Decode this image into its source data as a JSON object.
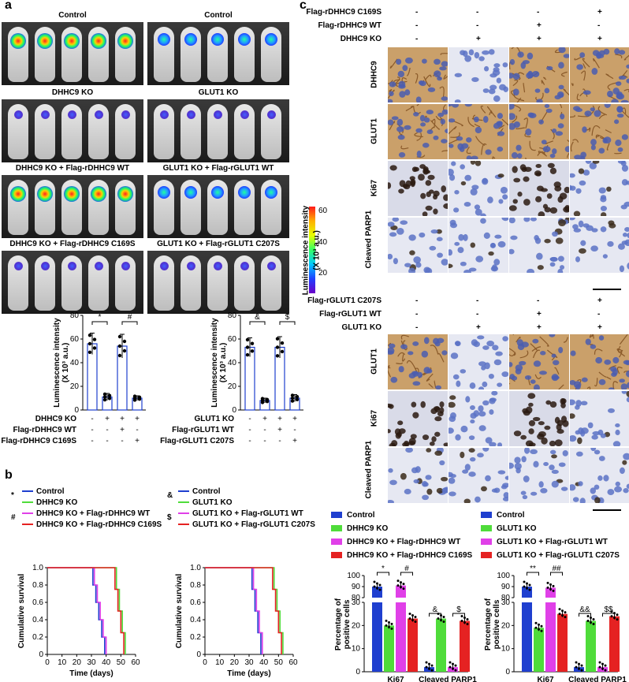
{
  "panels": {
    "a": "a",
    "b": "b",
    "c": "c"
  },
  "imaging": {
    "groups": [
      {
        "label": "Control",
        "intensity": "high"
      },
      {
        "label": "Control",
        "intensity": "mid"
      },
      {
        "label": "DHHC9 KO",
        "intensity": "low"
      },
      {
        "label": "GLUT1 KO",
        "intensity": "low"
      },
      {
        "label": "DHHC9 KO + Flag-rDHHC9 WT",
        "intensity": "high"
      },
      {
        "label": "GLUT1 KO + Flag-rGLUT1 WT",
        "intensity": "mid"
      },
      {
        "label": "DHHC9 KO + Flag-rDHHC9 C169S",
        "intensity": "low"
      },
      {
        "label": "GLUT1 KO + Flag-rGLUT1 C207S",
        "intensity": "low"
      }
    ],
    "colorbar": {
      "label": "Luminescence intensity",
      "unit": "(X 10³ a.u.)",
      "ticks": [
        "60",
        "40",
        "20"
      ]
    }
  },
  "bar_a_ylabel": "Luminescence intensity",
  "bar_a_yunit": "(X 10³ a.u.)",
  "chart_data": [
    {
      "type": "bar",
      "ylabel": "Luminescence intensity (X 10³ a.u.)",
      "ylim": [
        0,
        80
      ],
      "yticks": [
        "0",
        "20",
        "40",
        "60",
        "80"
      ],
      "values": [
        56,
        11,
        54,
        10
      ],
      "errors": [
        9,
        3,
        10,
        2
      ],
      "rows": [
        {
          "label": "DHHC9 KO",
          "marks": [
            "-",
            "+",
            "+",
            "+"
          ]
        },
        {
          "label": "Flag-rDHHC9 WT",
          "marks": [
            "-",
            "-",
            "+",
            "-"
          ]
        },
        {
          "label": "Flag-rDHHC9 C169S",
          "marks": [
            "-",
            "-",
            "-",
            "+"
          ]
        }
      ],
      "sig": [
        "*",
        "#"
      ]
    },
    {
      "type": "bar",
      "ylabel": "Luminescence intensity (X 10³ a.u.)",
      "ylim": [
        0,
        80
      ],
      "yticks": [
        "0",
        "20",
        "40",
        "60",
        "80"
      ],
      "values": [
        53,
        8,
        53,
        10
      ],
      "errors": [
        8,
        2,
        9,
        3
      ],
      "rows": [
        {
          "label": "GLUT1 KO",
          "marks": [
            "-",
            "+",
            "+",
            "+"
          ]
        },
        {
          "label": "Flag-rGLUT1 WT",
          "marks": [
            "-",
            "-",
            "+",
            "-"
          ]
        },
        {
          "label": "Flag-rGLUT1 C207S",
          "marks": [
            "-",
            "-",
            "-",
            "+"
          ]
        }
      ],
      "sig": [
        "&",
        "$"
      ]
    },
    {
      "type": "line",
      "xlabel": "Time (days)",
      "ylabel": "Cumulative survival",
      "xlim": [
        0,
        60
      ],
      "ylim": [
        0,
        1.0
      ],
      "xticks": [
        "0",
        "10",
        "20",
        "30",
        "40",
        "50",
        "60"
      ],
      "yticks": [
        "0",
        "0.2",
        "0.4",
        "0.6",
        "0.8",
        "1.0"
      ],
      "series": [
        {
          "name": "Control",
          "color": "#1f3fcf",
          "x": [
            0,
            29,
            31,
            33,
            35,
            37,
            39
          ],
          "y": [
            1.0,
            1.0,
            0.8,
            0.6,
            0.4,
            0.2,
            0.0
          ]
        },
        {
          "name": "DHHC9 KO",
          "color": "#4fdc3a",
          "x": [
            0,
            45,
            47,
            49,
            51,
            53
          ],
          "y": [
            1.0,
            1.0,
            0.75,
            0.5,
            0.25,
            0.0
          ]
        },
        {
          "name": "DHHC9 KO + Flag-rDHHC9 WT",
          "color": "#e040e8",
          "x": [
            0,
            30,
            32,
            34,
            36,
            38,
            40
          ],
          "y": [
            1.0,
            1.0,
            0.8,
            0.6,
            0.4,
            0.2,
            0.0
          ]
        },
        {
          "name": "DHHC9 KO + Flag-rDHHC9 C169S",
          "color": "#e52222",
          "x": [
            0,
            44,
            46,
            48,
            50,
            52
          ],
          "y": [
            1.0,
            1.0,
            0.75,
            0.5,
            0.25,
            0.0
          ]
        }
      ],
      "sig": [
        "*",
        "#"
      ]
    },
    {
      "type": "line",
      "xlabel": "Time (days)",
      "ylabel": "Cumulative survival",
      "xlim": [
        0,
        60
      ],
      "ylim": [
        0,
        1.0
      ],
      "xticks": [
        "0",
        "10",
        "20",
        "30",
        "40",
        "50",
        "60"
      ],
      "yticks": [
        "0",
        "0.2",
        "0.4",
        "0.6",
        "0.8",
        "1.0"
      ],
      "series": [
        {
          "name": "Control",
          "color": "#1f3fcf",
          "x": [
            0,
            30,
            32,
            34,
            36,
            38
          ],
          "y": [
            1.0,
            1.0,
            0.75,
            0.5,
            0.25,
            0.0
          ]
        },
        {
          "name": "GLUT1 KO",
          "color": "#4fdc3a",
          "x": [
            0,
            45,
            47,
            49,
            51,
            53
          ],
          "y": [
            1.0,
            1.0,
            0.75,
            0.5,
            0.25,
            0.0
          ]
        },
        {
          "name": "GLUT1 KO + Flag-rGLUT1 WT",
          "color": "#e040e8",
          "x": [
            0,
            31,
            33,
            35,
            37,
            39
          ],
          "y": [
            1.0,
            1.0,
            0.75,
            0.5,
            0.25,
            0.0
          ]
        },
        {
          "name": "GLUT1 KO + Flag-rGLUT1 C207S",
          "color": "#e52222",
          "x": [
            0,
            44,
            46,
            48,
            50,
            52
          ],
          "y": [
            1.0,
            1.0,
            0.75,
            0.5,
            0.25,
            0.0
          ]
        }
      ],
      "sig": [
        "&",
        "$"
      ]
    },
    {
      "type": "bar",
      "ylabel": "Percentage of positive cells",
      "categories": [
        "Ki67",
        "Cleaved PARP1"
      ],
      "series": [
        {
          "name": "Control",
          "color": "#1f3fcf",
          "values": [
            90,
            2
          ]
        },
        {
          "name": "DHHC9 KO",
          "color": "#4fdc3a",
          "values": [
            20,
            23
          ]
        },
        {
          "name": "DHHC9 KO + Flag-rDHHC9 WT",
          "color": "#e040e8",
          "values": [
            91,
            2
          ]
        },
        {
          "name": "DHHC9 KO + Flag-rDHHC9 C169S",
          "color": "#e52222",
          "values": [
            23,
            22
          ]
        }
      ],
      "yticks": [
        "0",
        "10",
        "20",
        "30",
        "80",
        "90",
        "100"
      ],
      "sig": [
        "*",
        "#",
        "&",
        "$"
      ]
    },
    {
      "type": "bar",
      "ylabel": "Percentage of positive cells",
      "categories": [
        "Ki67",
        "Cleaved PARP1"
      ],
      "series": [
        {
          "name": "Control",
          "color": "#1f3fcf",
          "values": [
            90,
            2
          ]
        },
        {
          "name": "GLUT1 KO",
          "color": "#4fdc3a",
          "values": [
            19,
            22
          ]
        },
        {
          "name": "GLUT1 KO + Flag-rGLUT1 WT",
          "color": "#e040e8",
          "values": [
            89,
            2
          ]
        },
        {
          "name": "GLUT1 KO + Flag-rGLUT1 C207S",
          "color": "#e52222",
          "values": [
            25,
            24
          ]
        }
      ],
      "yticks": [
        "0",
        "10",
        "20",
        "30",
        "80",
        "90",
        "100"
      ],
      "sig": [
        "**",
        "##",
        "&&",
        "$$"
      ]
    }
  ],
  "ihc_top": {
    "rows_header": [
      {
        "label": "Flag-rDHHC9 C169S",
        "marks": [
          "-",
          "-",
          "-",
          "+"
        ]
      },
      {
        "label": "Flag-rDHHC9 WT",
        "marks": [
          "-",
          "-",
          "+",
          "-"
        ]
      },
      {
        "label": "DHHC9 KO",
        "marks": [
          "-",
          "+",
          "+",
          "+"
        ]
      }
    ],
    "stains": [
      "DHHC9",
      "GLUT1",
      "Ki67",
      "Cleaved PARP1"
    ]
  },
  "ihc_bottom": {
    "rows_header": [
      {
        "label": "Flag-rGLUT1 C207S",
        "marks": [
          "-",
          "-",
          "-",
          "+"
        ]
      },
      {
        "label": "Flag-rGLUT1 WT",
        "marks": [
          "-",
          "-",
          "+",
          "-"
        ]
      },
      {
        "label": "GLUT1 KO",
        "marks": [
          "-",
          "+",
          "+",
          "+"
        ]
      }
    ],
    "stains": [
      "GLUT1",
      "Ki67",
      "Cleaved PARP1"
    ]
  }
}
